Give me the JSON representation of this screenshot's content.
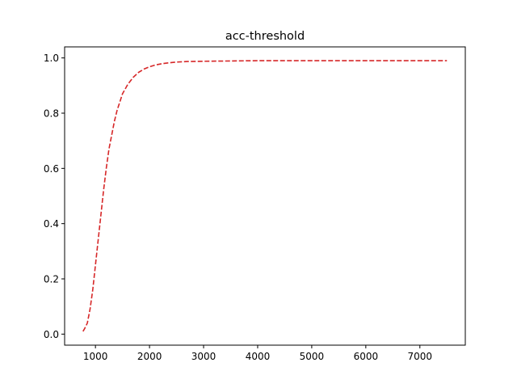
{
  "chart_data": {
    "type": "line",
    "title": "acc-threshold",
    "xlabel": "",
    "ylabel": "",
    "xlim": [
      430,
      7840
    ],
    "ylim": [
      -0.04,
      1.04
    ],
    "x_ticks": [
      1000,
      2000,
      3000,
      4000,
      5000,
      6000,
      7000
    ],
    "y_ticks": [
      0.0,
      0.2,
      0.4,
      0.6,
      0.8,
      1.0
    ],
    "x_tick_labels": [
      "1000",
      "2000",
      "3000",
      "4000",
      "5000",
      "6000",
      "7000"
    ],
    "y_tick_labels": [
      "0.0",
      "0.2",
      "0.4",
      "0.6",
      "0.8",
      "1.0"
    ],
    "grid": false,
    "series": [
      {
        "color": "#d62728",
        "line_style": "dashed",
        "x": [
          770,
          800,
          850,
          900,
          950,
          1000,
          1050,
          1100,
          1150,
          1200,
          1250,
          1300,
          1350,
          1400,
          1450,
          1500,
          1600,
          1700,
          1800,
          1900,
          2000,
          2100,
          2200,
          2300,
          2400,
          2500,
          2700,
          3000,
          3500,
          4000,
          5000,
          6000,
          7000,
          7500
        ],
        "y": [
          0.01,
          0.02,
          0.04,
          0.09,
          0.16,
          0.25,
          0.34,
          0.43,
          0.52,
          0.6,
          0.67,
          0.72,
          0.77,
          0.81,
          0.84,
          0.87,
          0.905,
          0.93,
          0.948,
          0.96,
          0.968,
          0.974,
          0.978,
          0.981,
          0.983,
          0.985,
          0.987,
          0.988,
          0.989,
          0.99,
          0.99,
          0.99,
          0.99,
          0.99
        ]
      }
    ]
  }
}
